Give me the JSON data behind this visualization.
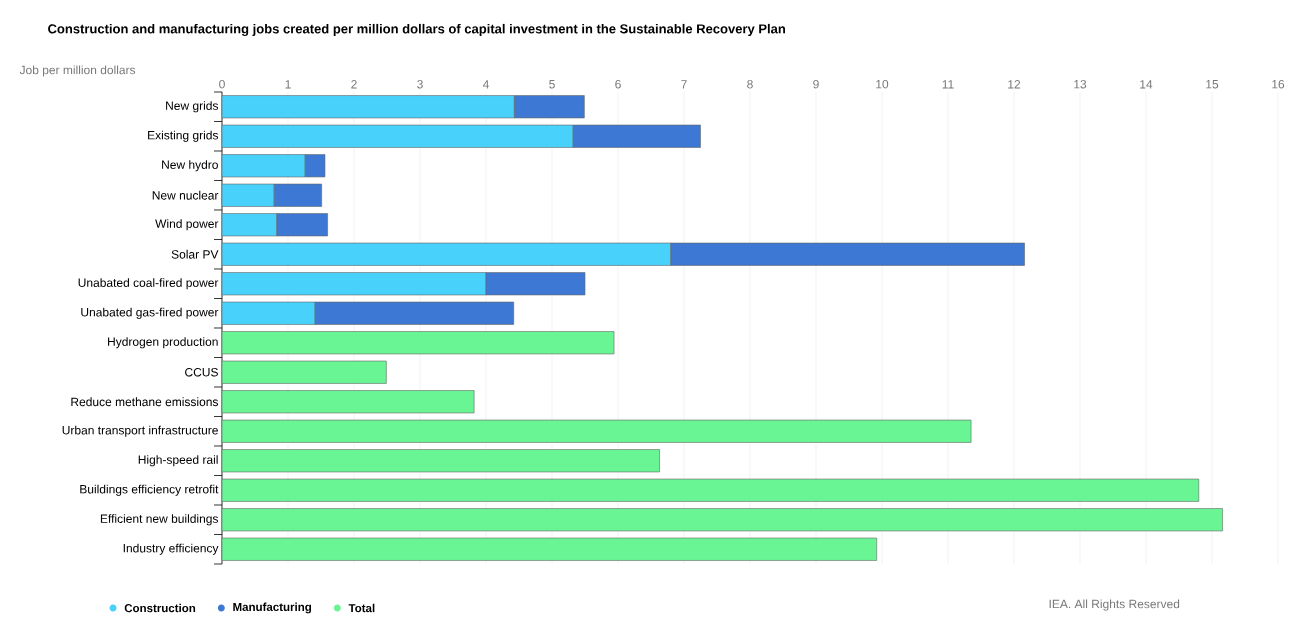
{
  "chart_data": {
    "type": "bar",
    "orientation": "horizontal",
    "stacked": true,
    "title": "Construction and manufacturing jobs created per million dollars of capital investment in the Sustainable Recovery Plan",
    "xlabel": "Job per million dollars",
    "categories": [
      "New grids",
      "Existing grids",
      "New hydro",
      "New nuclear",
      "Wind power",
      "Solar PV",
      "Unabated coal-fired power",
      "Unabated gas-fired power",
      "Hydrogen production",
      "CCUS",
      "Reduce methane emissions",
      "Urban transport infrastructure",
      "High-speed rail",
      "Buildings efficiency retrofit",
      "Efficient new buildings",
      "Industry efficiency"
    ],
    "series": [
      {
        "name": "Construction",
        "color": "#48d1fb",
        "values": [
          4.43,
          5.32,
          1.26,
          0.79,
          0.83,
          6.8,
          4.0,
          1.41,
          null,
          null,
          null,
          null,
          null,
          null,
          null,
          null
        ]
      },
      {
        "name": "Manufacturing",
        "color": "#3d78d4",
        "values": [
          1.06,
          1.93,
          0.3,
          0.72,
          0.77,
          5.36,
          1.5,
          3.01,
          null,
          null,
          null,
          null,
          null,
          null,
          null,
          null
        ]
      },
      {
        "name": "Total",
        "color": "#6af595",
        "values": [
          null,
          null,
          null,
          null,
          null,
          null,
          null,
          null,
          5.94,
          2.49,
          3.82,
          11.35,
          6.63,
          14.8,
          15.16,
          9.92
        ]
      }
    ],
    "xlim": [
      0,
      16
    ],
    "xticks": [
      0,
      1,
      2,
      3,
      4,
      5,
      6,
      7,
      8,
      9,
      10,
      11,
      12,
      13,
      14,
      15,
      16
    ],
    "grid": "x",
    "legend": "bottom",
    "annotations": [
      "IEA. All Rights Reserved"
    ]
  }
}
